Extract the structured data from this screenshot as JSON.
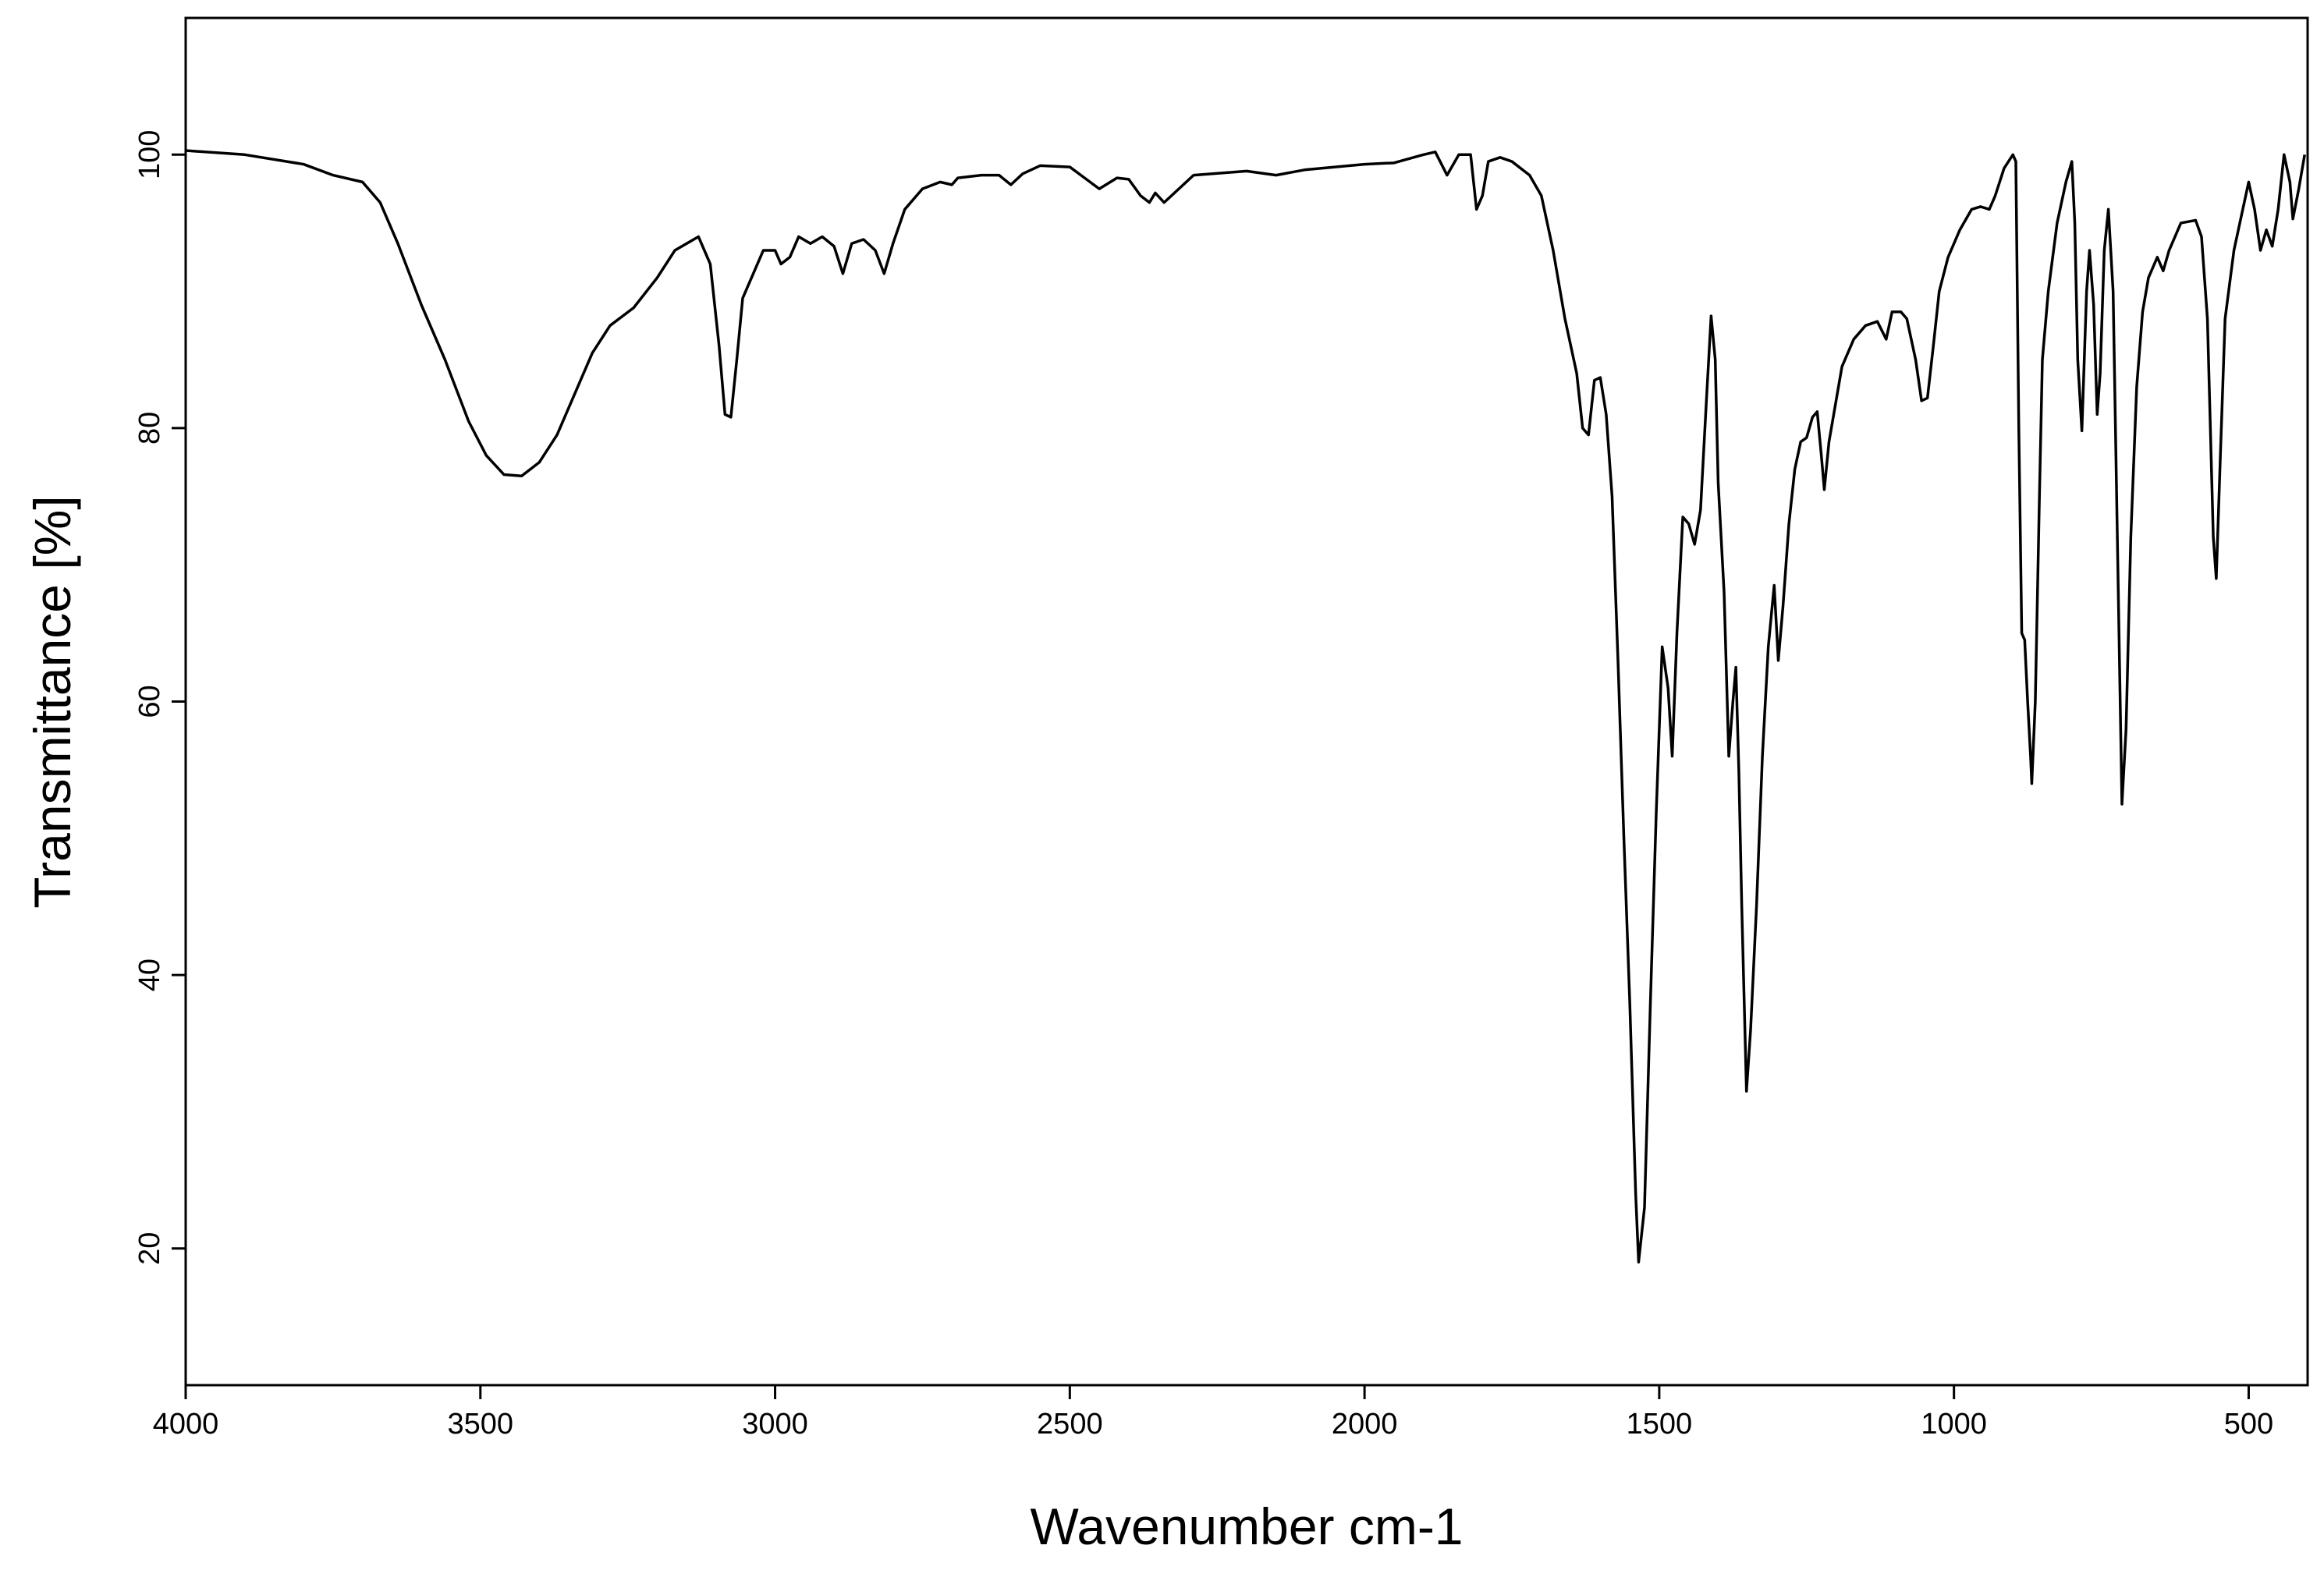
{
  "chart_data": {
    "type": "line",
    "xlabel": "Wavenumber cm-1",
    "ylabel": "Transmittance [%]",
    "xlim": [
      4000,
      400
    ],
    "ylim": [
      10,
      110
    ],
    "xticks": [
      4000,
      3500,
      3000,
      2500,
      2000,
      1500,
      1000,
      500
    ],
    "yticks": [
      20,
      40,
      60,
      80,
      100
    ],
    "grid": false,
    "color": "#000000",
    "x": [
      4000,
      3900,
      3800,
      3750,
      3700,
      3670,
      3640,
      3600,
      3560,
      3520,
      3490,
      3460,
      3430,
      3400,
      3370,
      3340,
      3310,
      3280,
      3240,
      3200,
      3170,
      3130,
      3110,
      3095,
      3085,
      3075,
      3065,
      3055,
      3040,
      3020,
      3000,
      2990,
      2975,
      2960,
      2940,
      2920,
      2900,
      2885,
      2870,
      2850,
      2830,
      2815,
      2800,
      2780,
      2750,
      2720,
      2700,
      2690,
      2650,
      2620,
      2600,
      2580,
      2550,
      2500,
      2450,
      2420,
      2400,
      2380,
      2365,
      2355,
      2340,
      2320,
      2290,
      2200,
      2150,
      2100,
      2000,
      1950,
      1900,
      1880,
      1860,
      1840,
      1820,
      1810,
      1800,
      1790,
      1770,
      1750,
      1720,
      1700,
      1680,
      1660,
      1640,
      1630,
      1620,
      1610,
      1600,
      1590,
      1580,
      1570,
      1560,
      1550,
      1540,
      1535,
      1525,
      1515,
      1505,
      1495,
      1485,
      1478,
      1470,
      1460,
      1450,
      1440,
      1430,
      1420,
      1412,
      1405,
      1400,
      1390,
      1382,
      1375,
      1370,
      1365,
      1360,
      1352,
      1345,
      1335,
      1325,
      1315,
      1305,
      1298,
      1290,
      1280,
      1270,
      1260,
      1250,
      1240,
      1232,
      1225,
      1220,
      1212,
      1200,
      1190,
      1170,
      1150,
      1130,
      1115,
      1105,
      1090,
      1080,
      1065,
      1055,
      1045,
      1035,
      1025,
      1010,
      990,
      970,
      955,
      940,
      930,
      915,
      900,
      895,
      890,
      885,
      880,
      875,
      870,
      868,
      862,
      855,
      850,
      840,
      825,
      810,
      800,
      795,
      790,
      783,
      775,
      770,
      763,
      757,
      752,
      745,
      738,
      730,
      722,
      715,
      708,
      700,
      690,
      680,
      670,
      655,
      645,
      635,
      615,
      590,
      580,
      570,
      560,
      555,
      548,
      540,
      525,
      510,
      500,
      490,
      480,
      470,
      460,
      450,
      440,
      430,
      425,
      415,
      405
    ],
    "values": [
      100.3,
      100.0,
      99.3,
      98.5,
      98.0,
      96.5,
      93.5,
      89,
      85,
      80.5,
      78,
      76.6,
      76.5,
      77.5,
      79.5,
      82.5,
      85.5,
      87.5,
      88.8,
      91,
      93,
      94,
      92,
      86,
      81,
      80.8,
      85,
      89.5,
      91,
      93,
      93,
      92,
      92.5,
      94,
      93.5,
      94,
      93.3,
      91.3,
      93.5,
      93.8,
      93,
      91.3,
      93.5,
      96,
      97.5,
      98,
      97.8,
      98.3,
      98.5,
      98.5,
      97.8,
      98.6,
      99.2,
      99.1,
      97.5,
      98.3,
      98.2,
      97,
      96.5,
      97.2,
      96.5,
      97.3,
      98.5,
      98.8,
      98.5,
      98.9,
      99.3,
      99.4,
      100,
      100.2,
      98.5,
      100,
      100,
      96,
      97,
      99.5,
      99.8,
      99.5,
      98.5,
      97,
      93,
      88,
      84,
      80,
      79.5,
      83.5,
      83.7,
      81,
      75,
      63,
      50,
      38,
      24,
      19,
      23,
      38,
      52,
      64,
      61,
      56,
      65,
      73.5,
      73,
      71.5,
      74,
      82,
      88.2,
      85,
      76,
      68,
      56,
      60,
      62.5,
      55,
      45,
      31.5,
      36,
      45,
      56,
      64,
      68.5,
      63,
      67,
      73,
      77,
      79,
      79.3,
      80.8,
      81.2,
      78,
      75.5,
      79,
      82,
      84.5,
      86.5,
      87.5,
      87.8,
      86.5,
      88.5,
      88.5,
      88,
      85,
      82,
      82.2,
      86,
      90,
      92.5,
      94.5,
      96,
      96.2,
      96,
      97,
      99,
      100,
      99.5,
      80,
      65,
      64.5,
      60,
      56,
      54,
      60,
      75,
      85,
      90,
      95,
      98,
      99.5,
      95,
      85,
      79.8,
      90,
      93,
      89,
      81,
      84,
      93,
      96,
      90,
      70,
      52.5,
      58,
      72,
      83,
      88.5,
      91,
      92.5,
      91.5,
      93,
      95,
      95.2,
      94,
      88,
      72,
      69,
      78,
      88,
      93,
      96,
      98,
      96,
      93,
      94.5,
      93.3,
      96,
      100,
      98,
      95.3,
      97.5,
      100
    ]
  }
}
